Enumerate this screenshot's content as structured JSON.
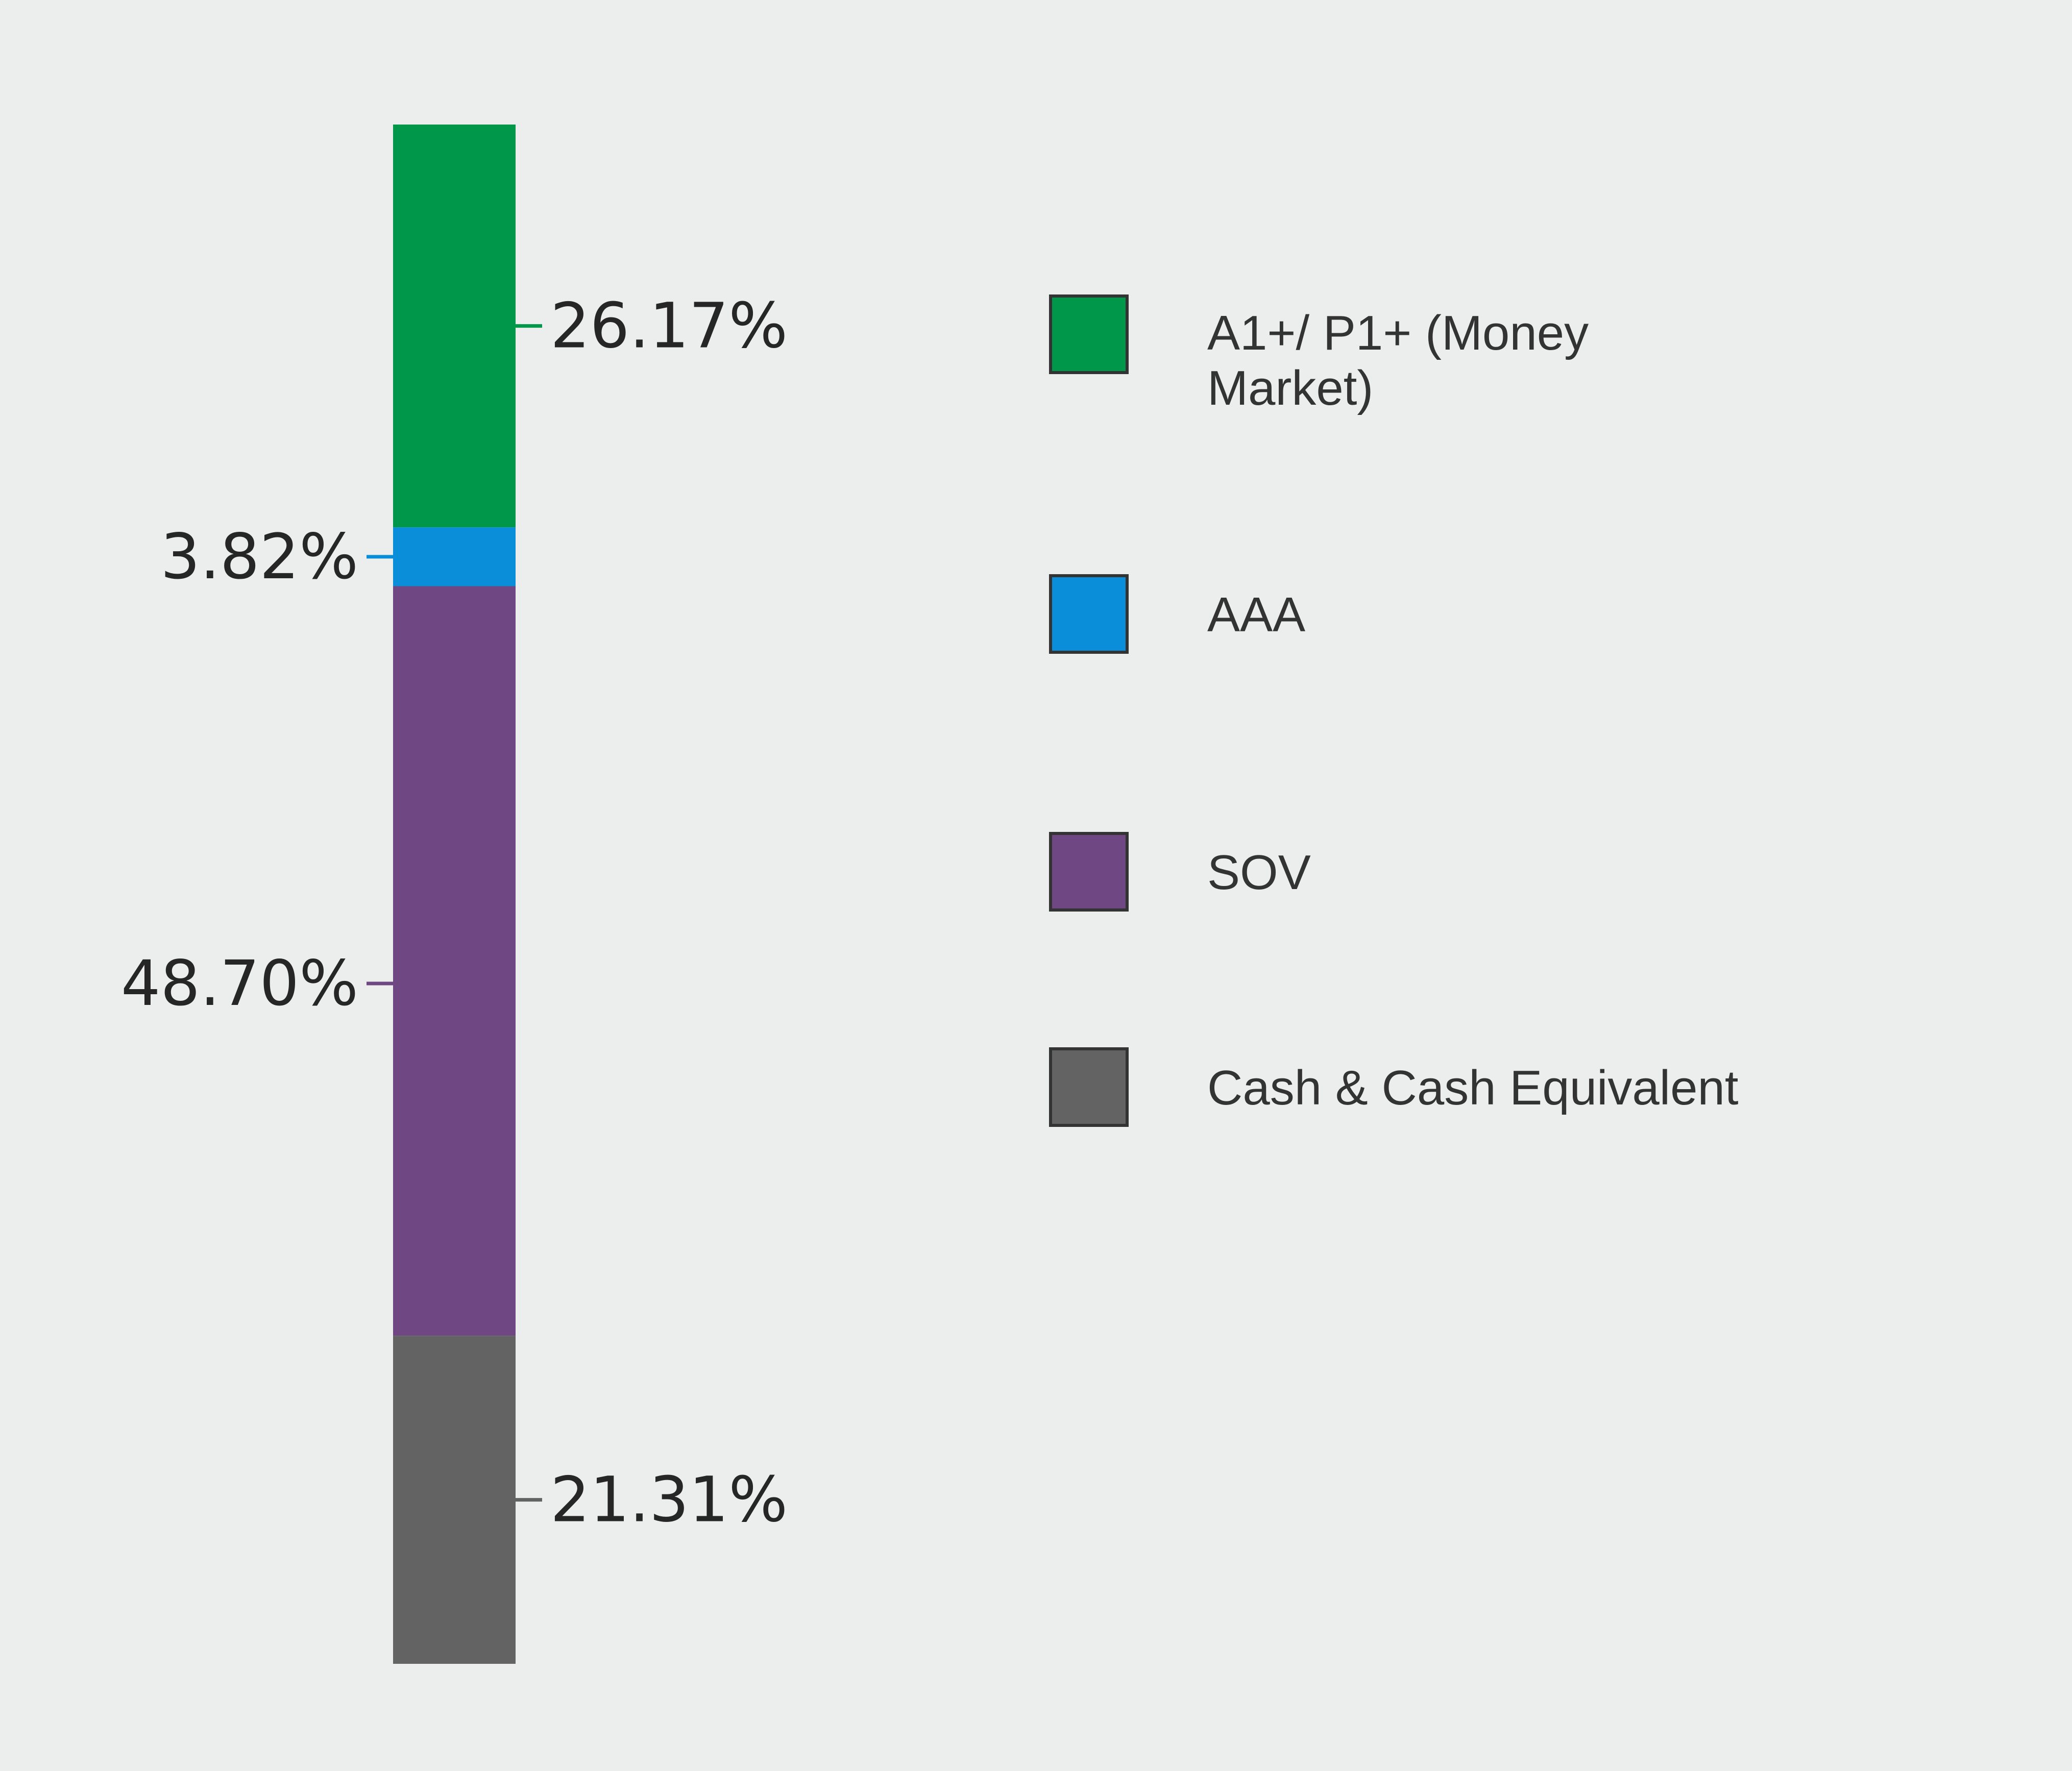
{
  "chart_data": {
    "type": "bar",
    "stacked": true,
    "orientation": "vertical",
    "legend_position": "right",
    "grid": false,
    "series": [
      {
        "name": "A1+/ P1+ (Money Market)",
        "name_lines": [
          "A1+/ P1+ (Money",
          "Market)"
        ],
        "value": 26.17,
        "label": "26.17%",
        "color": "#00974a"
      },
      {
        "name": "AAA",
        "name_lines": [
          "AAA"
        ],
        "value": 3.82,
        "label": "3.82%",
        "color": "#0a8ed9"
      },
      {
        "name": "SOV",
        "name_lines": [
          "SOV"
        ],
        "value": 48.7,
        "label": "48.70%",
        "color": "#6f4782"
      },
      {
        "name": "Cash & Cash Equivalent",
        "name_lines": [
          "Cash & Cash Equivalent"
        ],
        "value": 21.31,
        "label": "21.31%",
        "color": "#636363"
      }
    ],
    "total": 100
  }
}
